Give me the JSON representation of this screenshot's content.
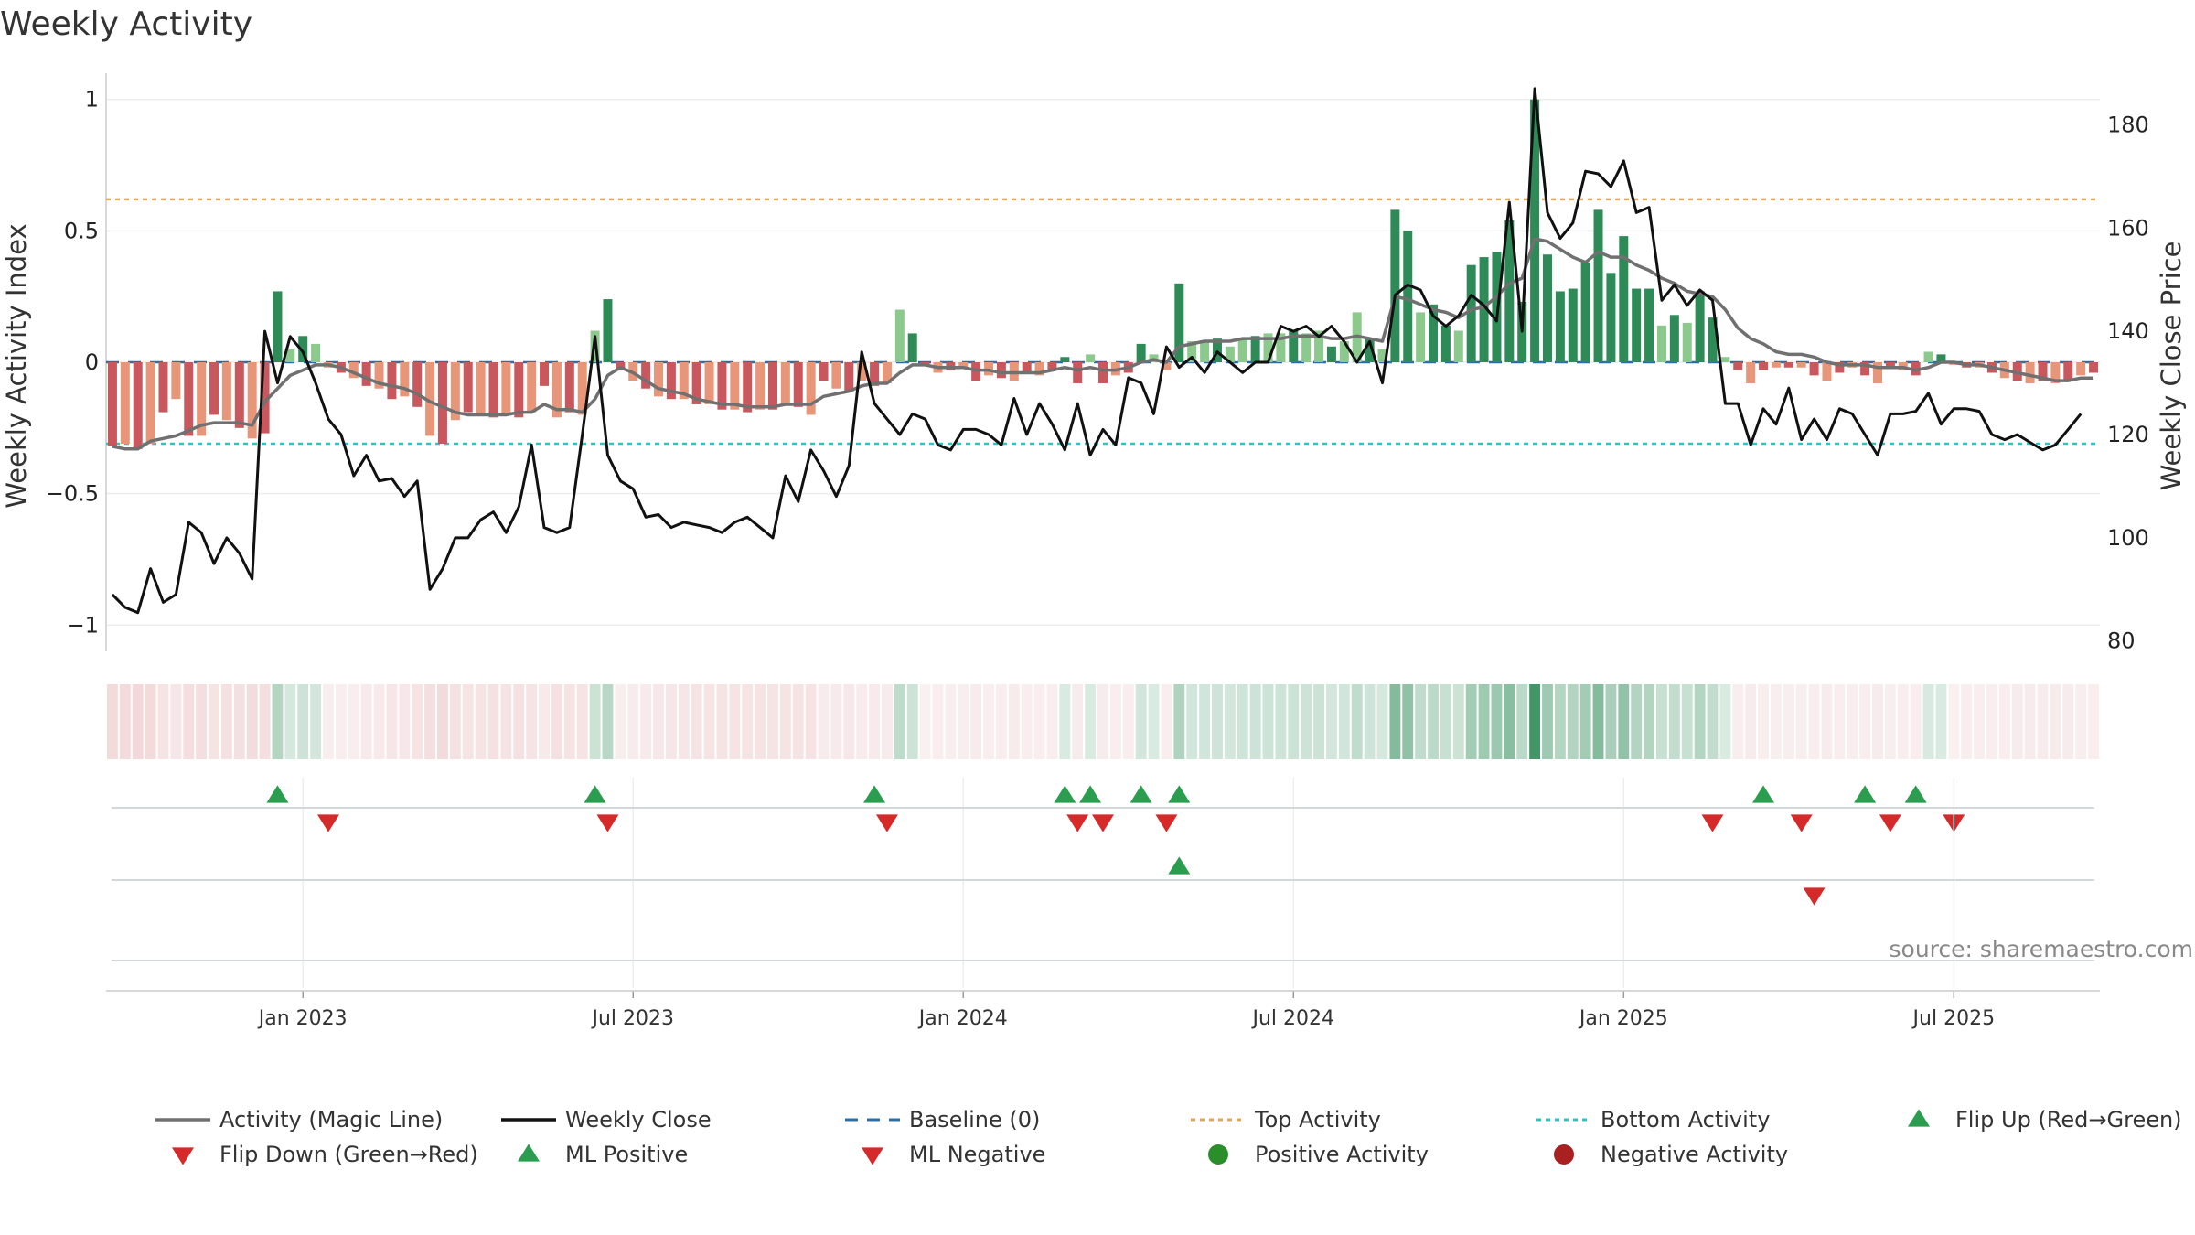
{
  "title": "Weekly Activity",
  "source": "source: sharemaestro.com",
  "chart_data": {
    "type": "bar",
    "y_left": {
      "label": "Weekly Activity Index",
      "range": [
        -1.1,
        1.1
      ],
      "ticks": [
        1,
        0.5,
        0,
        -0.5,
        -1
      ],
      "tick_labels": [
        "1",
        "0.5",
        "0",
        "−0.5",
        "−1"
      ]
    },
    "y_right": {
      "label": "Weekly Close Price",
      "range": [
        78,
        190
      ],
      "ticks": [
        180,
        160,
        140,
        120,
        100,
        80
      ],
      "tick_labels": [
        "180",
        "160",
        "140",
        "120",
        "100",
        "80"
      ]
    },
    "x_ticks": [
      "Jan 2023",
      "Jul 2023",
      "Jan 2024",
      "Jul 2024",
      "Jan 2025",
      "Jul 2025"
    ],
    "x_tick_weeks": [
      15,
      41,
      67,
      93,
      119,
      145
    ],
    "baseline": 0,
    "top_activity": 0.62,
    "bottom_activity": -0.31,
    "activity": [
      -0.32,
      -0.31,
      -0.33,
      -0.31,
      -0.19,
      -0.14,
      -0.28,
      -0.28,
      -0.2,
      -0.22,
      -0.25,
      -0.29,
      -0.27,
      0.27,
      0.05,
      0.1,
      0.07,
      -0.02,
      -0.04,
      -0.06,
      -0.09,
      -0.1,
      -0.14,
      -0.13,
      -0.17,
      -0.28,
      -0.31,
      -0.22,
      -0.19,
      -0.2,
      -0.21,
      -0.2,
      -0.21,
      -0.19,
      -0.09,
      -0.21,
      -0.19,
      -0.2,
      0.12,
      0.24,
      -0.03,
      -0.07,
      -0.1,
      -0.13,
      -0.14,
      -0.14,
      -0.16,
      -0.16,
      -0.18,
      -0.18,
      -0.19,
      -0.18,
      -0.18,
      -0.16,
      -0.17,
      -0.2,
      -0.07,
      -0.1,
      -0.11,
      -0.07,
      -0.09,
      -0.08,
      0.2,
      0.11,
      -0.01,
      -0.04,
      -0.03,
      -0.02,
      -0.07,
      -0.05,
      -0.06,
      -0.07,
      -0.04,
      -0.05,
      -0.03,
      0.02,
      -0.08,
      0.03,
      -0.08,
      -0.05,
      -0.04,
      0.07,
      0.03,
      -0.03,
      0.3,
      0.08,
      0.08,
      0.09,
      0.06,
      0.09,
      0.1,
      0.11,
      0.11,
      0.12,
      0.11,
      0.12,
      0.06,
      0.08,
      0.19,
      0.09,
      0.05,
      0.58,
      0.5,
      0.19,
      0.22,
      0.14,
      0.12,
      0.37,
      0.4,
      0.42,
      0.54,
      0.23,
      1.0,
      0.41,
      0.27,
      0.28,
      0.38,
      0.58,
      0.34,
      0.48,
      0.28,
      0.28,
      0.14,
      0.18,
      0.15,
      0.27,
      0.17,
      0.02,
      -0.03,
      -0.08,
      -0.03,
      -0.02,
      -0.02,
      -0.02,
      -0.05,
      -0.07,
      -0.04,
      -0.02,
      -0.05,
      -0.08,
      -0.02,
      -0.03,
      -0.05,
      0.04,
      0.03,
      -0.01,
      -0.02,
      -0.02,
      -0.04,
      -0.06,
      -0.07,
      -0.08,
      -0.07,
      -0.08,
      -0.07,
      -0.05,
      -0.04
    ],
    "magic_line": [
      -0.32,
      -0.33,
      -0.33,
      -0.3,
      -0.29,
      -0.28,
      -0.26,
      -0.24,
      -0.23,
      -0.23,
      -0.23,
      -0.24,
      -0.15,
      -0.1,
      -0.05,
      -0.03,
      -0.01,
      -0.01,
      -0.02,
      -0.04,
      -0.06,
      -0.08,
      -0.09,
      -0.1,
      -0.12,
      -0.15,
      -0.17,
      -0.19,
      -0.2,
      -0.2,
      -0.2,
      -0.2,
      -0.19,
      -0.19,
      -0.16,
      -0.18,
      -0.18,
      -0.19,
      -0.14,
      -0.05,
      -0.02,
      -0.04,
      -0.07,
      -0.1,
      -0.11,
      -0.12,
      -0.14,
      -0.15,
      -0.16,
      -0.16,
      -0.17,
      -0.17,
      -0.17,
      -0.16,
      -0.16,
      -0.16,
      -0.13,
      -0.12,
      -0.11,
      -0.09,
      -0.08,
      -0.08,
      -0.04,
      -0.01,
      -0.01,
      -0.02,
      -0.02,
      -0.02,
      -0.03,
      -0.03,
      -0.04,
      -0.04,
      -0.04,
      -0.04,
      -0.03,
      -0.02,
      -0.03,
      -0.02,
      -0.03,
      -0.03,
      -0.02,
      0.0,
      0.01,
      0.0,
      0.06,
      0.07,
      0.08,
      0.08,
      0.08,
      0.09,
      0.09,
      0.09,
      0.09,
      0.1,
      0.1,
      0.1,
      0.09,
      0.09,
      0.1,
      0.09,
      0.08,
      0.25,
      0.24,
      0.22,
      0.2,
      0.19,
      0.17,
      0.2,
      0.21,
      0.25,
      0.3,
      0.32,
      0.47,
      0.46,
      0.43,
      0.4,
      0.38,
      0.42,
      0.4,
      0.4,
      0.37,
      0.35,
      0.32,
      0.3,
      0.27,
      0.26,
      0.25,
      0.2,
      0.13,
      0.09,
      0.07,
      0.04,
      0.03,
      0.03,
      0.02,
      0.0,
      -0.01,
      -0.01,
      -0.01,
      -0.02,
      -0.02,
      -0.02,
      -0.03,
      -0.02,
      0.0,
      0.0,
      -0.01,
      -0.01,
      -0.02,
      -0.03,
      -0.04,
      -0.05,
      -0.06,
      -0.07,
      -0.07,
      -0.06,
      -0.06
    ],
    "weekly_close": [
      89,
      86.5,
      85.5,
      94,
      87.5,
      89,
      103,
      101,
      95,
      100,
      97,
      92,
      140,
      130,
      139,
      136,
      130,
      123,
      120,
      112,
      116,
      111,
      111.5,
      108,
      111,
      90,
      94,
      100,
      100,
      103.5,
      105,
      101,
      106,
      118,
      102,
      101,
      102,
      120,
      139,
      116,
      111,
      109.5,
      104,
      104.5,
      102,
      103,
      102.5,
      102,
      101,
      103,
      104,
      102,
      100,
      112,
      107,
      117,
      113,
      108,
      114,
      136,
      126,
      123,
      120,
      124,
      123,
      118,
      117,
      121,
      121,
      120,
      118,
      127,
      120,
      126,
      122,
      117,
      126,
      116,
      121,
      118,
      131,
      130,
      124,
      137,
      133,
      135,
      132,
      136,
      134,
      132,
      134,
      134,
      141,
      140,
      141,
      139,
      141,
      138,
      134,
      138,
      130,
      147,
      149,
      148,
      143,
      141,
      143,
      147,
      145,
      142,
      165,
      140,
      187,
      163,
      158,
      161,
      171,
      170.5,
      168,
      173,
      163,
      164,
      146,
      149,
      145,
      148,
      146,
      126,
      126,
      118,
      125,
      122,
      129,
      119,
      123,
      119,
      125,
      124,
      120,
      116,
      124,
      124,
      124.5,
      128,
      122,
      125,
      125,
      124.5,
      120,
      119,
      120,
      118.5,
      117,
      118,
      121,
      124
    ],
    "flip_up_weeks": [
      13,
      38,
      60,
      75,
      77,
      81,
      84,
      130,
      138,
      142
    ],
    "flip_down_weeks": [
      17,
      39,
      61,
      76,
      78,
      83,
      126,
      133,
      140,
      145
    ],
    "ml_positive_weeks": [
      84
    ],
    "ml_negative_weeks": [
      134
    ],
    "legend": [
      "Activity (Magic Line)",
      "Weekly Close",
      "Baseline (0)",
      "Top Activity",
      "Bottom Activity",
      "Flip Up (Red→Green)",
      "Flip Down (Green→Red)",
      "ML Positive",
      "ML Negative",
      "Positive Activity",
      "Negative Activity"
    ],
    "colors": {
      "pos_dark": "#2e8b57",
      "pos_light": "#8cc98c",
      "neg_dark": "#c8585d",
      "neg_light": "#e8967a",
      "magic_line": "#707070",
      "close": "#111111",
      "baseline": "#2a6fa8",
      "top": "#e0a65c",
      "bottom": "#2ec4c4",
      "flip_up": "#2a9d4f",
      "flip_down": "#d62a2a",
      "pos_marker": "#2a8f2a",
      "neg_marker": "#a82020"
    }
  }
}
